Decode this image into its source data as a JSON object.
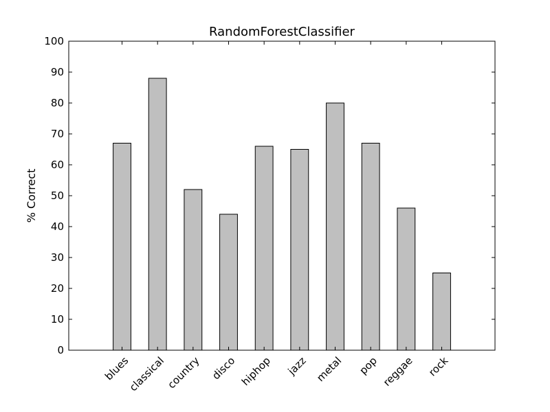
{
  "chart_data": {
    "type": "bar",
    "title": "RandomForestClassifier",
    "xlabel": "",
    "ylabel": "% Correct",
    "categories": [
      "blues",
      "classical",
      "country",
      "disco",
      "hiphop",
      "jazz",
      "metal",
      "pop",
      "reggae",
      "rock"
    ],
    "values": [
      67,
      88,
      52,
      44,
      66,
      65,
      80,
      67,
      46,
      25
    ],
    "ylim": [
      0,
      100
    ],
    "yticks": [
      0,
      10,
      20,
      30,
      40,
      50,
      60,
      70,
      80,
      90,
      100
    ],
    "bar_color": "#bfbfbf",
    "grid": false
  }
}
